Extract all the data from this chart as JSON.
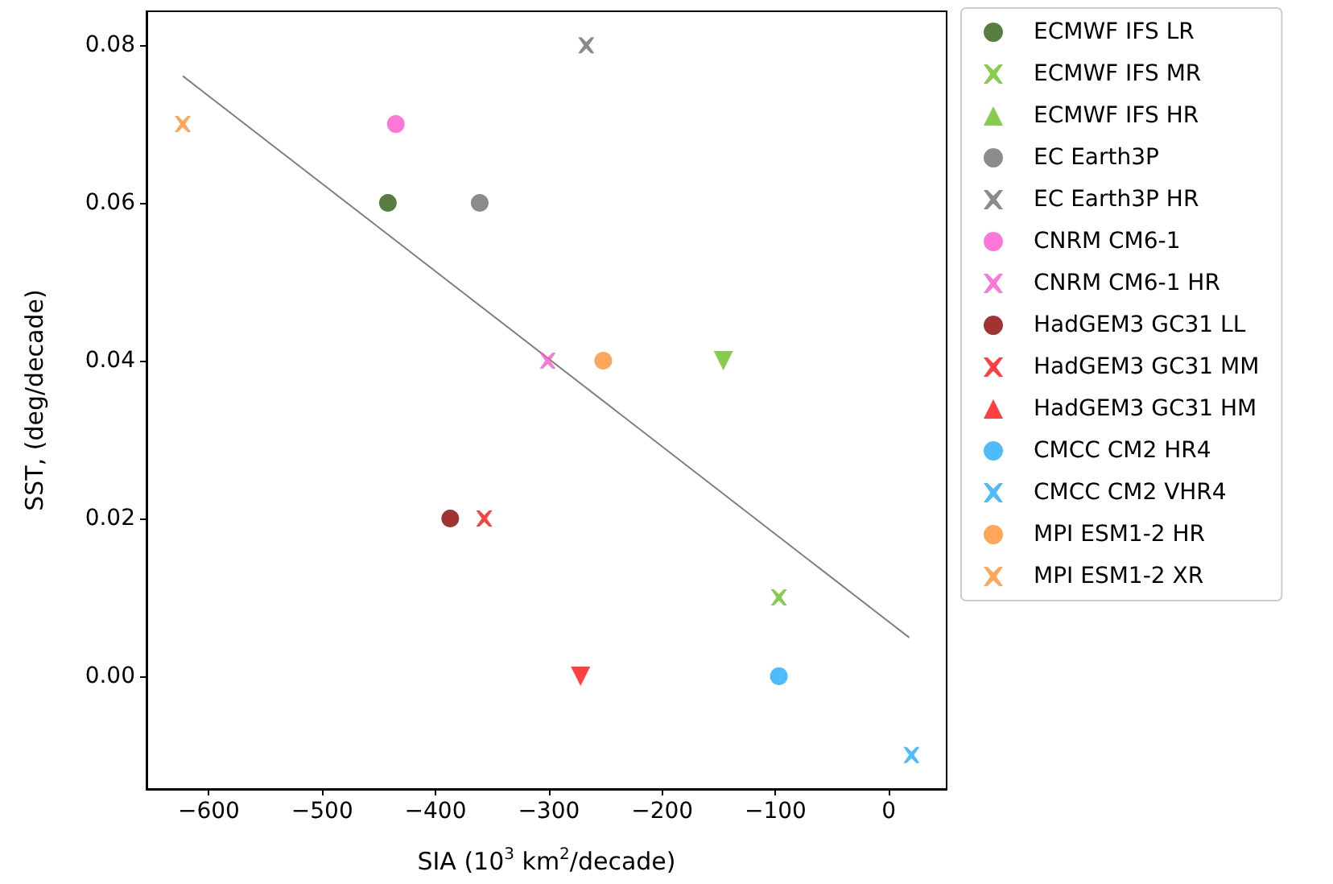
{
  "chart_data": {
    "type": "scatter",
    "xlabel": "SIA (10$^{3}$ km$^{2}$/decade)",
    "ylabel": "SST, (deg/decade)",
    "xlim": [
      -655,
      51
    ],
    "ylim": [
      -0.0143,
      0.0843
    ],
    "xticks": [
      {
        "value": -600,
        "label": "−600"
      },
      {
        "value": -500,
        "label": "−500"
      },
      {
        "value": -400,
        "label": "−400"
      },
      {
        "value": -300,
        "label": "−300"
      },
      {
        "value": -200,
        "label": "−200"
      },
      {
        "value": -100,
        "label": "−100"
      },
      0
    ],
    "yticks": [
      {
        "value": 0,
        "label": "0.00"
      },
      {
        "value": 0.02,
        "label": "0.02"
      },
      {
        "value": 0.04,
        "label": "0.04"
      },
      {
        "value": 0.06,
        "label": "0.06"
      },
      {
        "value": 0.08,
        "label": "0.08"
      }
    ],
    "grid": false,
    "legend": "right",
    "series": [
      {
        "name": "ECMWF IFS LR",
        "color": "#2d5e10",
        "marker": "circle",
        "x": [
          -442
        ],
        "values": [
          0.06
        ]
      },
      {
        "name": "ECMWF IFS MR",
        "color": "#6abf20",
        "marker": "cross",
        "x": [
          -97
        ],
        "values": [
          0.01
        ]
      },
      {
        "name": "ECMWF IFS HR",
        "color": "#6abf20",
        "marker": "triangle",
        "x": [
          -146
        ],
        "values": [
          0.04
        ]
      },
      {
        "name": "EC Earth3P",
        "color": "#6e6e6e",
        "marker": "circle",
        "x": [
          -361
        ],
        "values": [
          0.06
        ]
      },
      {
        "name": "EC Earth3P HR",
        "color": "#6e6e6e",
        "marker": "cross",
        "x": [
          -267
        ],
        "values": [
          0.08
        ]
      },
      {
        "name": "CNRM CM6-1",
        "color": "#ff55cc",
        "marker": "circle",
        "x": [
          -435
        ],
        "values": [
          0.07
        ]
      },
      {
        "name": "CNRM CM6-1 HR",
        "color": "#ff55cc",
        "marker": "cross",
        "x": [
          -301
        ],
        "values": [
          0.04
        ]
      },
      {
        "name": "HadGEM3 GC31 LL",
        "color": "#8b0000",
        "marker": "circle",
        "x": [
          -387
        ],
        "values": [
          0.02
        ]
      },
      {
        "name": "HadGEM3 GC31 MM",
        "color": "#ff1010",
        "marker": "cross",
        "x": [
          -357
        ],
        "values": [
          0.02
        ]
      },
      {
        "name": "HadGEM3 GC31 HM",
        "color": "#ff1010",
        "marker": "triangle",
        "x": [
          -272
        ],
        "values": [
          0.0
        ]
      },
      {
        "name": "CMCC CM2 HR4",
        "color": "#22aaff",
        "marker": "circle",
        "x": [
          -97
        ],
        "values": [
          0.0
        ]
      },
      {
        "name": "CMCC CM2 VHR4",
        "color": "#22aaff",
        "marker": "cross",
        "x": [
          20
        ],
        "values": [
          -0.01
        ]
      },
      {
        "name": "MPI ESM1-2 HR",
        "color": "#ff9030",
        "marker": "circle",
        "x": [
          -252
        ],
        "values": [
          0.04
        ]
      },
      {
        "name": "MPI ESM1-2 XR",
        "color": "#ff9030",
        "marker": "cross",
        "x": [
          -623
        ],
        "values": [
          0.07
        ]
      },
      {
        "type": "line",
        "color": "#808080",
        "x": [
          -623,
          18
        ],
        "values": [
          0.0761,
          0.0049
        ]
      }
    ]
  }
}
